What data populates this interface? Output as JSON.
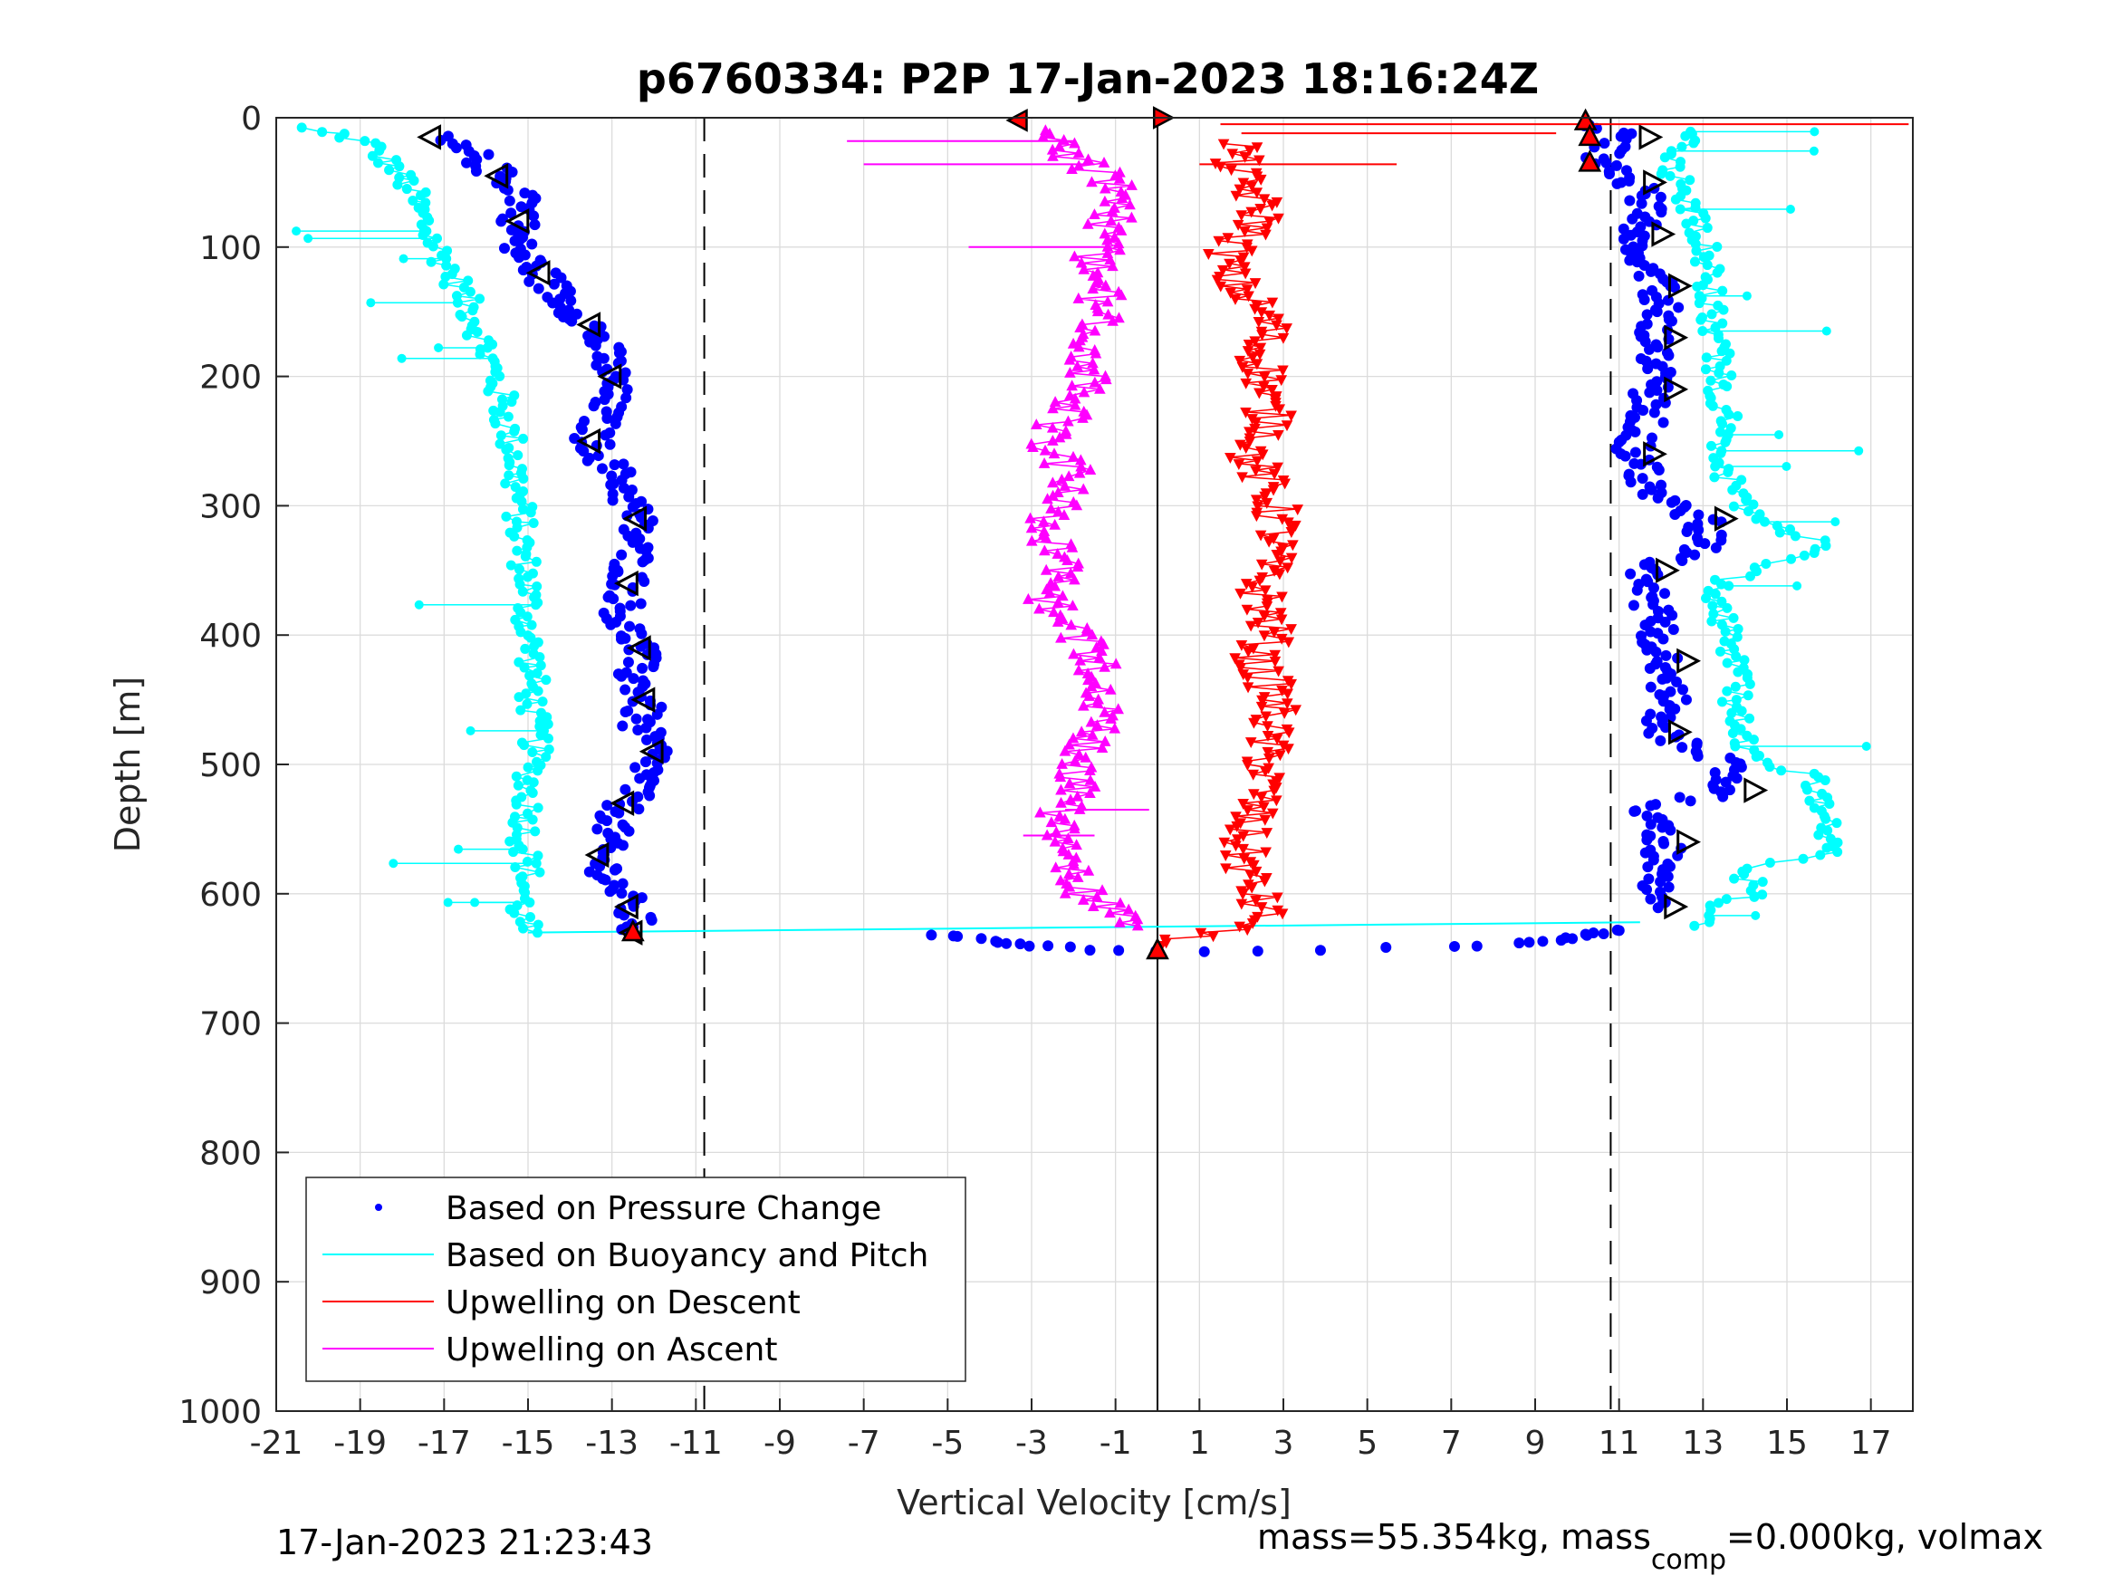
{
  "chart_data": {
    "type": "scatter",
    "title": "p6760334: P2P 17-Jan-2023 18:16:24Z",
    "xlabel": "Vertical Velocity [cm/s]",
    "ylabel": "Depth [m]",
    "xlim": [
      -21,
      18
    ],
    "ylim": [
      0,
      1000
    ],
    "y_reversed": true,
    "grid": true,
    "xticks": [
      -21,
      -19,
      -17,
      -15,
      -13,
      -11,
      -9,
      -7,
      -5,
      -3,
      -1,
      1,
      3,
      5,
      7,
      9,
      11,
      13,
      15,
      17
    ],
    "yticks": [
      0,
      100,
      200,
      300,
      400,
      500,
      600,
      700,
      800,
      900,
      1000
    ],
    "reference_lines": [
      {
        "x": -10.8,
        "style": "dashed"
      },
      {
        "x": 0,
        "style": "solid"
      },
      {
        "x": 10.8,
        "style": "dashed"
      }
    ],
    "legend_position": "bottom-left",
    "series": [
      {
        "name": "Based on Pressure Change",
        "color": "#0000ff",
        "marker": "dot",
        "descent": [
          [
            -17.3,
            15
          ],
          [
            -16.2,
            30
          ],
          [
            -15.7,
            45
          ],
          [
            -15.0,
            60
          ],
          [
            -15.2,
            80
          ],
          [
            -15.3,
            100
          ],
          [
            -14.7,
            120
          ],
          [
            -14.2,
            140
          ],
          [
            -13.5,
            160
          ],
          [
            -13.2,
            180
          ],
          [
            -13.0,
            200
          ],
          [
            -13.1,
            220
          ],
          [
            -13.5,
            250
          ],
          [
            -12.8,
            280
          ],
          [
            -12.4,
            310
          ],
          [
            -12.5,
            340
          ],
          [
            -12.6,
            360
          ],
          [
            -12.8,
            390
          ],
          [
            -12.3,
            410
          ],
          [
            -12.5,
            430
          ],
          [
            -12.2,
            450
          ],
          [
            -12.4,
            470
          ],
          [
            -12.0,
            490
          ],
          [
            -12.2,
            510
          ],
          [
            -12.7,
            530
          ],
          [
            -13.0,
            550
          ],
          [
            -13.3,
            570
          ],
          [
            -13.0,
            590
          ],
          [
            -12.6,
            610
          ],
          [
            -12.4,
            625
          ],
          [
            -12.5,
            630
          ]
        ],
        "bottom_turn": [
          [
            -5.3,
            632
          ],
          [
            -4,
            636
          ],
          [
            -3,
            640
          ],
          [
            -2,
            642
          ],
          [
            -1,
            644
          ],
          [
            0,
            645
          ],
          [
            1,
            645
          ],
          [
            2.5,
            644
          ],
          [
            4,
            643
          ],
          [
            5.5,
            642
          ],
          [
            7,
            641
          ],
          [
            8.5,
            639
          ],
          [
            9.5,
            636
          ],
          [
            10.5,
            631
          ],
          [
            11.1,
            628
          ]
        ],
        "ascent": [
          [
            11.8,
            610
          ],
          [
            11.9,
            580
          ],
          [
            12.1,
            560
          ],
          [
            11.6,
            535
          ],
          [
            13.7,
            520
          ],
          [
            13.5,
            500
          ],
          [
            11.9,
            475
          ],
          [
            12.2,
            450
          ],
          [
            12.1,
            420
          ],
          [
            11.8,
            380
          ],
          [
            11.6,
            350
          ],
          [
            13.1,
            330
          ],
          [
            13.0,
            310
          ],
          [
            11.8,
            290
          ],
          [
            11.3,
            260
          ],
          [
            11.7,
            230
          ],
          [
            11.8,
            210
          ],
          [
            12.0,
            190
          ],
          [
            11.8,
            170
          ],
          [
            12.0,
            150
          ],
          [
            11.9,
            130
          ],
          [
            11.6,
            110
          ],
          [
            11.5,
            90
          ],
          [
            11.8,
            70
          ],
          [
            11.3,
            50
          ],
          [
            10.6,
            30
          ],
          [
            11.2,
            15
          ],
          [
            10.2,
            5
          ]
        ]
      },
      {
        "name": "Based on Buoyancy and Pitch",
        "color": "#00ffff",
        "marker": "circle-line",
        "descent": [
          [
            -20.5,
            8
          ],
          [
            -19.5,
            12
          ],
          [
            -18.8,
            20
          ],
          [
            -18.3,
            35
          ],
          [
            -17.8,
            55
          ],
          [
            -17.5,
            80
          ],
          [
            -17.2,
            100
          ],
          [
            -16.8,
            120
          ],
          [
            -16.5,
            140
          ],
          [
            -16.2,
            160
          ],
          [
            -16.0,
            180
          ],
          [
            -15.8,
            200
          ],
          [
            -15.6,
            220
          ],
          [
            -15.5,
            240
          ],
          [
            -15.3,
            260
          ],
          [
            -15.3,
            280
          ],
          [
            -15.2,
            300
          ],
          [
            -15.2,
            320
          ],
          [
            -15.1,
            340
          ],
          [
            -15.0,
            360
          ],
          [
            -15.0,
            380
          ],
          [
            -15.0,
            400
          ],
          [
            -14.9,
            420
          ],
          [
            -14.9,
            440
          ],
          [
            -14.9,
            460
          ],
          [
            -14.8,
            480
          ],
          [
            -14.9,
            500
          ],
          [
            -15.0,
            520
          ],
          [
            -15.0,
            540
          ],
          [
            -15.1,
            560
          ],
          [
            -15.0,
            580
          ],
          [
            -15.1,
            600
          ],
          [
            -15.2,
            615
          ],
          [
            -15.0,
            630
          ]
        ],
        "ascent": [
          [
            13.0,
            625
          ],
          [
            13.0,
            610
          ],
          [
            14.2,
            600
          ],
          [
            14.0,
            580
          ],
          [
            16.3,
            568
          ],
          [
            15.8,
            540
          ],
          [
            15.7,
            510
          ],
          [
            14.1,
            495
          ],
          [
            13.8,
            470
          ],
          [
            13.8,
            440
          ],
          [
            13.6,
            410
          ],
          [
            13.4,
            380
          ],
          [
            13.3,
            360
          ],
          [
            15.9,
            330
          ],
          [
            14.1,
            310
          ],
          [
            13.7,
            290
          ],
          [
            13.5,
            260
          ],
          [
            13.6,
            240
          ],
          [
            13.5,
            220
          ],
          [
            13.4,
            200
          ],
          [
            13.4,
            180
          ],
          [
            13.3,
            160
          ],
          [
            13.2,
            140
          ],
          [
            13.1,
            120
          ],
          [
            13.0,
            100
          ],
          [
            12.8,
            80
          ],
          [
            12.5,
            60
          ],
          [
            12.3,
            40
          ],
          [
            12.6,
            20
          ],
          [
            13.0,
            10
          ]
        ]
      },
      {
        "name": "Upwelling on Descent",
        "color": "#ff0000",
        "marker": "triangle-down",
        "points": [
          [
            2.0,
            20
          ],
          [
            1.8,
            40
          ],
          [
            2.3,
            60
          ],
          [
            2.5,
            80
          ],
          [
            1.8,
            100
          ],
          [
            1.6,
            120
          ],
          [
            2.2,
            140
          ],
          [
            2.7,
            160
          ],
          [
            2.4,
            180
          ],
          [
            2.6,
            200
          ],
          [
            2.5,
            220
          ],
          [
            2.8,
            240
          ],
          [
            2.2,
            260
          ],
          [
            2.5,
            280
          ],
          [
            2.8,
            300
          ],
          [
            2.9,
            320
          ],
          [
            2.7,
            340
          ],
          [
            2.4,
            360
          ],
          [
            2.6,
            380
          ],
          [
            2.7,
            400
          ],
          [
            2.3,
            420
          ],
          [
            2.7,
            440
          ],
          [
            2.8,
            460
          ],
          [
            2.6,
            480
          ],
          [
            2.6,
            500
          ],
          [
            2.5,
            520
          ],
          [
            2.2,
            540
          ],
          [
            2.0,
            560
          ],
          [
            2.1,
            580
          ],
          [
            2.3,
            600
          ],
          [
            2.6,
            620
          ],
          [
            0,
            640
          ]
        ]
      },
      {
        "name": "Upwelling on Ascent",
        "color": "#ff00ff",
        "marker": "triangle-up",
        "points": [
          [
            -0.8,
            625
          ],
          [
            -1.3,
            610
          ],
          [
            -2.0,
            590
          ],
          [
            -2.5,
            570
          ],
          [
            -2.4,
            550
          ],
          [
            -2.2,
            530
          ],
          [
            -1.9,
            510
          ],
          [
            -1.8,
            490
          ],
          [
            -1.5,
            470
          ],
          [
            -1.2,
            450
          ],
          [
            -1.4,
            430
          ],
          [
            -1.6,
            410
          ],
          [
            -2.3,
            390
          ],
          [
            -2.6,
            370
          ],
          [
            -2.2,
            350
          ],
          [
            -2.5,
            330
          ],
          [
            -2.6,
            310
          ],
          [
            -2.3,
            290
          ],
          [
            -2.1,
            270
          ],
          [
            -2.8,
            250
          ],
          [
            -2.2,
            230
          ],
          [
            -1.8,
            210
          ],
          [
            -1.6,
            190
          ],
          [
            -1.8,
            170
          ],
          [
            -1.3,
            150
          ],
          [
            -1.4,
            130
          ],
          [
            -1.5,
            110
          ],
          [
            -1.2,
            90
          ],
          [
            -1.0,
            70
          ],
          [
            -1.1,
            50
          ],
          [
            -2.0,
            30
          ],
          [
            -2.5,
            10
          ]
        ]
      }
    ],
    "footer_left": "17-Jan-2023 21:23:43",
    "footer_right": {
      "part1": "mass=55.354kg, mass",
      "subscript": "comp",
      "part2": "=0.000kg, volmax"
    }
  }
}
